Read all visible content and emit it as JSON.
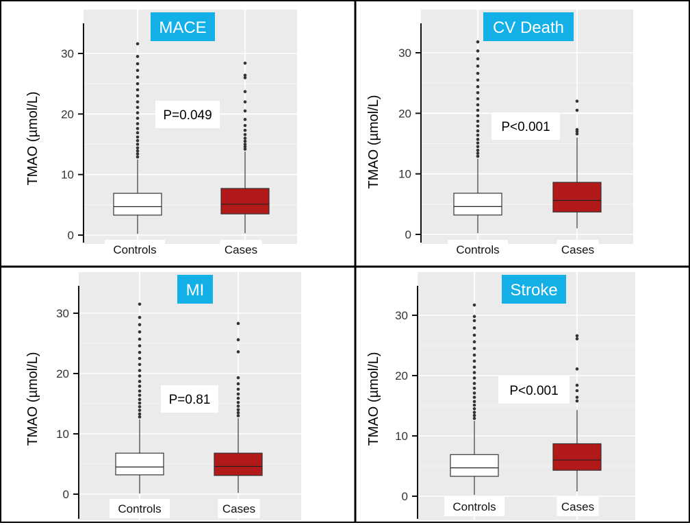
{
  "chart_data": [
    {
      "type": "box",
      "title": "MACE",
      "ylabel": "TMAO (µmol/L)",
      "ylim": [
        -1,
        33
      ],
      "yticks": [
        0,
        10,
        20,
        30
      ],
      "categories": [
        "Controls",
        "Cases"
      ],
      "annotation": "P=0.049",
      "grid": true,
      "boxes": [
        {
          "name": "Controls",
          "color": "#ffffff",
          "min": 0.2,
          "q1": 3.3,
          "median": 4.7,
          "q3": 6.9,
          "max": 12.5,
          "outliers": [
            12.9,
            13.4,
            13.9,
            14.4,
            15.0,
            15.6,
            16.2,
            16.9,
            17.6,
            18.4,
            19.3,
            20.2,
            21.1,
            22.0,
            23.0,
            24.0,
            25.0,
            26.1,
            27.2,
            28.3,
            29.5,
            31.6
          ]
        },
        {
          "name": "Cases",
          "color": "#b21a1a",
          "min": 0.3,
          "q1": 3.5,
          "median": 5.1,
          "q3": 7.7,
          "max": 13.8,
          "outliers": [
            14.2,
            14.6,
            15.0,
            15.5,
            16.0,
            16.6,
            17.3,
            18.1,
            19.1,
            20.5,
            22.0,
            23.7,
            26.0,
            26.4,
            28.4
          ]
        }
      ]
    },
    {
      "type": "box",
      "title": "CV Death",
      "ylabel": "TMAO (µmol/L)",
      "ylim": [
        -1,
        33
      ],
      "yticks": [
        0,
        10,
        20,
        30
      ],
      "categories": [
        "Controls",
        "Cases"
      ],
      "annotation": "P<0.001",
      "grid": true,
      "boxes": [
        {
          "name": "Controls",
          "color": "#ffffff",
          "min": 0.2,
          "q1": 3.2,
          "median": 4.6,
          "q3": 6.8,
          "max": 12.5,
          "outliers": [
            12.9,
            13.4,
            13.9,
            14.5,
            15.1,
            15.7,
            16.4,
            17.1,
            17.9,
            18.7,
            19.6,
            20.5,
            21.4,
            22.4,
            23.4,
            24.4,
            25.5,
            26.6,
            27.8,
            29.0,
            30.3,
            31.8
          ]
        },
        {
          "name": "Cases",
          "color": "#b21a1a",
          "min": 1.0,
          "q1": 3.7,
          "median": 5.6,
          "q3": 8.6,
          "max": 16.0,
          "outliers": [
            16.6,
            17.0,
            17.3,
            20.5,
            22.0
          ]
        }
      ]
    },
    {
      "type": "box",
      "title": "MI",
      "ylabel": "TMAO (µmol/L)",
      "ylim": [
        -1,
        33
      ],
      "yticks": [
        0,
        10,
        20,
        30
      ],
      "categories": [
        "Controls",
        "Cases"
      ],
      "annotation": "P=0.81",
      "grid": true,
      "boxes": [
        {
          "name": "Controls",
          "color": "#ffffff",
          "min": 0.1,
          "q1": 3.2,
          "median": 4.5,
          "q3": 6.8,
          "max": 12.4,
          "outliers": [
            12.8,
            13.3,
            13.9,
            14.5,
            15.1,
            15.7,
            16.4,
            17.1,
            17.9,
            18.7,
            19.6,
            20.5,
            21.5,
            22.5,
            23.5,
            24.6,
            25.7,
            26.9,
            28.1,
            29.3,
            31.5
          ]
        },
        {
          "name": "Cases",
          "color": "#b21a1a",
          "min": 0.2,
          "q1": 3.1,
          "median": 4.6,
          "q3": 6.8,
          "max": 12.6,
          "outliers": [
            13.0,
            13.5,
            14.0,
            14.6,
            15.2,
            15.9,
            16.6,
            17.4,
            18.3,
            19.3,
            23.6,
            25.6,
            28.3
          ]
        }
      ]
    },
    {
      "type": "box",
      "title": "Stroke",
      "ylabel": "TMAO (µmol/L)",
      "ylim": [
        -1,
        33
      ],
      "yticks": [
        0,
        10,
        20,
        30
      ],
      "categories": [
        "Controls",
        "Cases"
      ],
      "annotation": "P<0.001",
      "grid": true,
      "boxes": [
        {
          "name": "Controls",
          "color": "#ffffff",
          "min": 0.2,
          "q1": 3.3,
          "median": 4.7,
          "q3": 6.9,
          "max": 12.5,
          "outliers": [
            12.9,
            13.4,
            13.9,
            14.5,
            15.1,
            15.7,
            16.4,
            17.1,
            17.9,
            18.7,
            19.6,
            20.5,
            21.4,
            22.4,
            23.4,
            24.5,
            25.6,
            26.7,
            27.9,
            29.1,
            29.8,
            31.7
          ]
        },
        {
          "name": "Cases",
          "color": "#b21a1a",
          "min": 0.8,
          "q1": 4.3,
          "median": 6.0,
          "q3": 8.7,
          "max": 14.3,
          "outliers": [
            15.8,
            16.4,
            17.5,
            18.4,
            21.1,
            26.1,
            26.6
          ]
        }
      ]
    }
  ]
}
